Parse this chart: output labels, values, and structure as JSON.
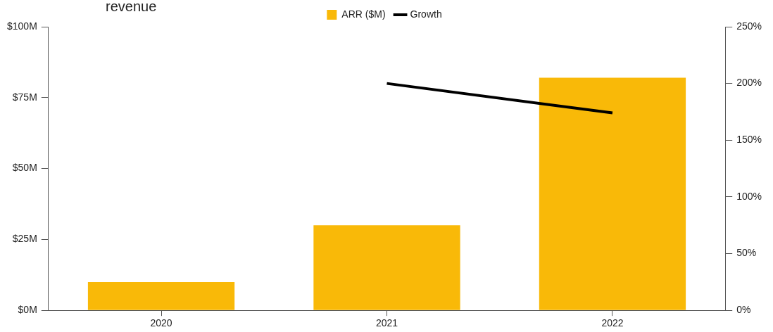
{
  "chart_data": {
    "type": "bar",
    "title": "revenue",
    "categories": [
      "2020",
      "2021",
      "2022"
    ],
    "series": [
      {
        "name": "ARR ($M)",
        "color": "#f9b908",
        "values": [
          10,
          30,
          82
        ]
      },
      {
        "name": "Growth",
        "type": "line",
        "axis": "y2",
        "color": "#000000",
        "values": [
          null,
          200,
          174
        ]
      }
    ],
    "ylim": [
      0,
      100
    ],
    "yticks": [
      {
        "value": 0,
        "label": "$0M"
      },
      {
        "value": 25,
        "label": "$25M"
      },
      {
        "value": 50,
        "label": "$50M"
      },
      {
        "value": 75,
        "label": "$75M"
      },
      {
        "value": 100,
        "label": "$100M"
      }
    ],
    "y2lim": [
      0,
      250
    ],
    "y2ticks": [
      {
        "value": 0,
        "label": "0%"
      },
      {
        "value": 50,
        "label": "50%"
      },
      {
        "value": 100,
        "label": "100%"
      },
      {
        "value": 150,
        "label": "150%"
      },
      {
        "value": 200,
        "label": "200%"
      },
      {
        "value": 250,
        "label": "250%"
      }
    ],
    "grid": false,
    "legend": "top",
    "marker": "none",
    "line_style": "solid"
  }
}
